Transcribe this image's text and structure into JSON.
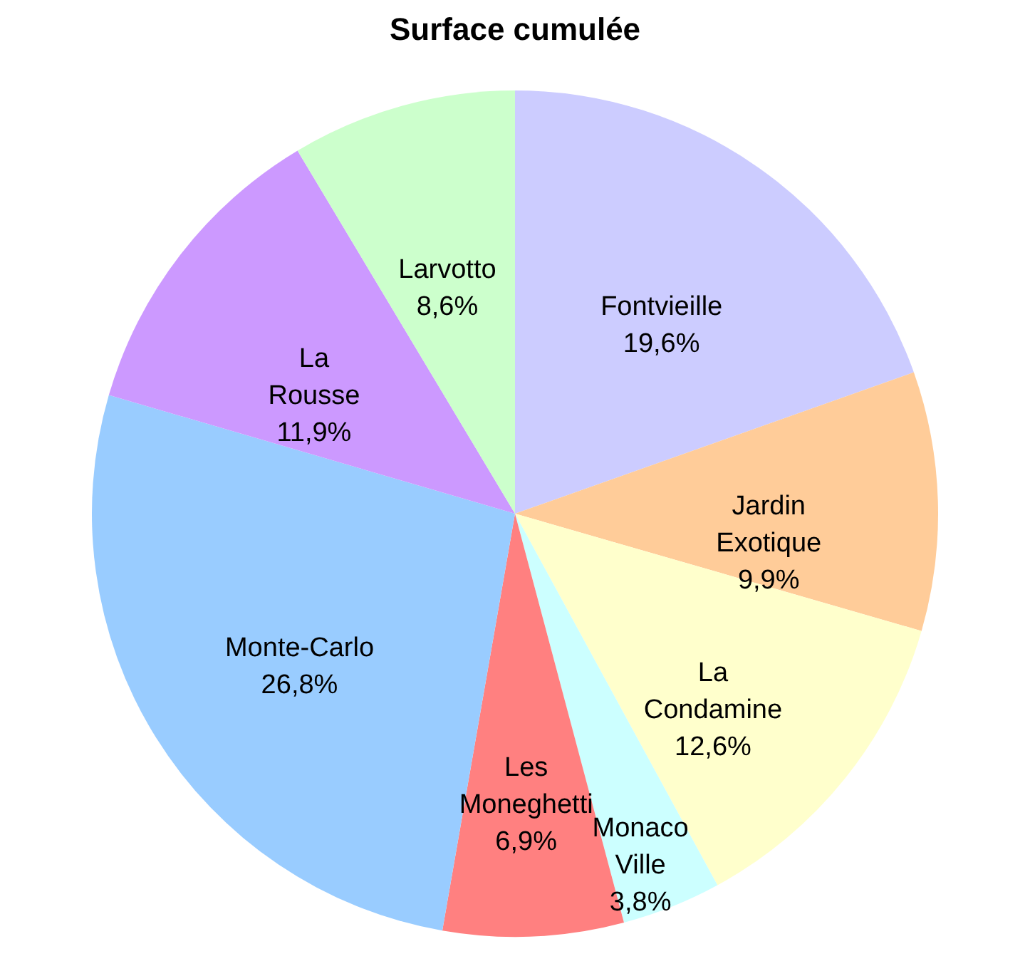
{
  "chart_data": {
    "type": "pie",
    "title": "Surface cumulée",
    "categories": [
      "Fontvieille",
      "Jardin Exotique",
      "La Condamine",
      "Monaco Ville",
      "Les Moneghetti",
      "Monte-Carlo",
      "La Rousse",
      "Larvotto"
    ],
    "values": [
      19.6,
      9.9,
      12.6,
      3.8,
      6.9,
      26.8,
      11.9,
      8.6
    ],
    "value_labels": [
      "19,6%",
      "9,9%",
      "12,6%",
      "3,8%",
      "6,9%",
      "26,8%",
      "11,9%",
      "8,6%"
    ],
    "colors": [
      "#ccccff",
      "#ffcc99",
      "#ffffcc",
      "#ccffff",
      "#ff8080",
      "#99ccff",
      "#cc99ff",
      "#ccffcc"
    ],
    "legend": false
  }
}
